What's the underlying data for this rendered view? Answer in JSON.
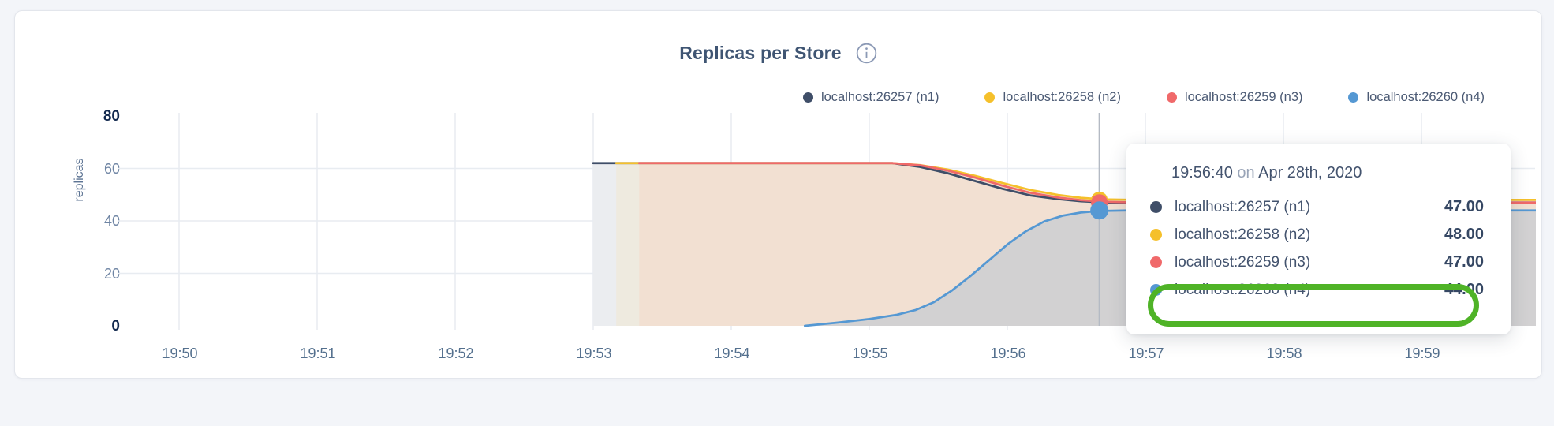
{
  "card": {
    "title": "Replicas per Store"
  },
  "axes": {
    "y_title": "replicas"
  },
  "chart_data": {
    "type": "area",
    "title": "Replicas per Store",
    "xlabel": "",
    "ylabel": "replicas",
    "ylim": [
      0,
      80
    ],
    "grid": true,
    "legend_position": "top-right",
    "x_unit": "time (HH:MM), Apr 28th, 2020",
    "x_ticks": [
      "19:50",
      "19:51",
      "19:52",
      "19:53",
      "19:54",
      "19:55",
      "19:56",
      "19:57",
      "19:58",
      "19:59"
    ],
    "y_ticks": [
      {
        "v": 80,
        "label": "80",
        "bold": true,
        "gridline": false
      },
      {
        "v": 60,
        "label": "60",
        "bold": false,
        "gridline": true
      },
      {
        "v": 40,
        "label": "40",
        "bold": false,
        "gridline": true
      },
      {
        "v": 20,
        "label": "20",
        "bold": false,
        "gridline": true
      },
      {
        "v": 0,
        "label": "0",
        "bold": true,
        "gridline": false
      }
    ],
    "point_format": "[seconds after 19:50:00, replicas]",
    "series": [
      {
        "name": "localhost:26257 (n1)",
        "color": "#3f4e68",
        "fill": "#ebedf0",
        "points": [
          [
            180,
            62
          ],
          [
            310,
            62
          ],
          [
            322,
            60.6
          ],
          [
            334,
            58.2
          ],
          [
            346,
            55.2
          ],
          [
            358,
            52.2
          ],
          [
            370,
            49.7
          ],
          [
            382,
            48.3
          ],
          [
            392,
            47.5
          ],
          [
            402,
            47.05
          ],
          [
            590,
            47
          ]
        ]
      },
      {
        "name": "localhost:26258 (n2)",
        "color": "#f5c02b",
        "fill": "#eeeadf",
        "points": [
          [
            190,
            62
          ],
          [
            310,
            62
          ],
          [
            322,
            61.3
          ],
          [
            334,
            59.6
          ],
          [
            346,
            57.2
          ],
          [
            358,
            54.4
          ],
          [
            370,
            51.8
          ],
          [
            382,
            49.9
          ],
          [
            392,
            48.8
          ],
          [
            402,
            48.2
          ],
          [
            415,
            48
          ],
          [
            590,
            48
          ]
        ]
      },
      {
        "name": "localhost:26259 (n3)",
        "color": "#f0696a",
        "fill": "#f2e0d2",
        "points": [
          [
            200,
            62
          ],
          [
            310,
            62
          ],
          [
            322,
            61.2
          ],
          [
            334,
            59.2
          ],
          [
            346,
            56.5
          ],
          [
            358,
            53.4
          ],
          [
            370,
            50.7
          ],
          [
            382,
            48.9
          ],
          [
            392,
            47.9
          ],
          [
            402,
            47.3
          ],
          [
            415,
            47.05
          ],
          [
            590,
            47
          ]
        ]
      },
      {
        "name": "localhost:26260 (n4)",
        "color": "#5598d3",
        "fill": "rgba(85,152,211,0.20)",
        "points": [
          [
            272,
            0
          ],
          [
            286,
            1.2
          ],
          [
            300,
            2.6
          ],
          [
            312,
            4.2
          ],
          [
            320,
            6
          ],
          [
            328,
            9
          ],
          [
            336,
            13.5
          ],
          [
            344,
            19
          ],
          [
            352,
            25
          ],
          [
            360,
            31
          ],
          [
            368,
            36
          ],
          [
            376,
            39.8
          ],
          [
            384,
            42
          ],
          [
            392,
            43.2
          ],
          [
            400,
            43.8
          ],
          [
            412,
            44
          ],
          [
            590,
            44
          ]
        ]
      }
    ],
    "hover": {
      "t": 400,
      "time_label": "19:56:40",
      "dots": [
        {
          "series": 0,
          "v": 47,
          "r": 10.5
        },
        {
          "series": 1,
          "v": 48,
          "r": 10.5
        },
        {
          "series": 2,
          "v": 47,
          "r": 10.5
        },
        {
          "series": 3,
          "v": 44,
          "r": 11.5
        }
      ]
    }
  },
  "tooltip": {
    "time": "19:56:40",
    "conjunction": "on",
    "date": "Apr 28th, 2020",
    "rows": [
      {
        "label": "localhost:26257 (n1)",
        "value": "47.00",
        "highlighted": false
      },
      {
        "label": "localhost:26258 (n2)",
        "value": "48.00",
        "highlighted": false
      },
      {
        "label": "localhost:26259 (n3)",
        "value": "47.00",
        "highlighted": false
      },
      {
        "label": "localhost:26260 (n4)",
        "value": "44.00",
        "highlighted": true
      }
    ]
  },
  "annotation": {
    "shape": "ellipse",
    "color": "#4fb327",
    "target": "tooltip row localhost:26260 (n4) 44.00"
  }
}
